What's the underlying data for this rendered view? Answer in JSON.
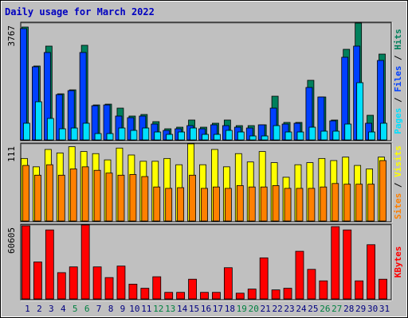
{
  "chart_data": [
    {
      "type": "bar",
      "title": "Daily usage for March 2022",
      "legend_separator": "/",
      "ylim": [
        0,
        3767
      ],
      "yticks": [
        3767
      ],
      "series": [
        {
          "name": "Pages",
          "color": "#00e0ff",
          "values": [
            538,
            1230,
            692,
            359,
            384,
            538,
            205,
            205,
            384,
            307,
            384,
            256,
            179,
            256,
            384,
            179,
            179,
            307,
            256,
            128,
            128,
            461,
            256,
            256,
            410,
            282,
            282,
            512,
            1845,
            256,
            538
          ]
        },
        {
          "name": "Files",
          "color": "#0040ff",
          "values": [
            3587,
            2357,
            2819,
            1461,
            1589,
            2819,
            1102,
            1127,
            769,
            717,
            769,
            512,
            307,
            359,
            461,
            359,
            487,
            461,
            410,
            384,
            487,
            1025,
            512,
            538,
            1691,
            1384,
            615,
            2665,
            3024,
            538,
            2562
          ]
        },
        {
          "name": "Hits",
          "color": "#00805c",
          "values": [
            3639,
            2383,
            3024,
            1486,
            1614,
            3050,
            1127,
            1153,
            1025,
            769,
            820,
            589,
            359,
            410,
            641,
            410,
            538,
            641,
            461,
            461,
            487,
            1409,
            564,
            564,
            1922,
            1384,
            641,
            2921,
            3767,
            794,
            2767
          ]
        }
      ]
    },
    {
      "type": "bar",
      "legend_separator": "/",
      "ylim": [
        0,
        111
      ],
      "yticks": [
        111
      ],
      "series": [
        {
          "name": "Sites",
          "color": "#ff8000",
          "values": [
            80,
            66,
            81,
            66,
            75,
            78,
            73,
            69,
            66,
            67,
            64,
            49,
            47,
            48,
            66,
            47,
            49,
            47,
            51,
            49,
            49,
            51,
            47,
            47,
            47,
            49,
            54,
            53,
            53,
            53,
            87
          ]
        },
        {
          "name": "Visits",
          "color": "#ffff00",
          "values": [
            90,
            78,
            103,
            98,
            107,
            100,
            97,
            88,
            105,
            95,
            86,
            86,
            90,
            81,
            111,
            81,
            103,
            78,
            97,
            85,
            100,
            84,
            63,
            81,
            84,
            90,
            87,
            92,
            80,
            75,
            92
          ]
        }
      ]
    },
    {
      "type": "bar",
      "ylim": [
        0,
        60605
      ],
      "yticks": [
        60605
      ],
      "categories": [
        "1",
        "2",
        "3",
        "4",
        "5",
        "6",
        "7",
        "8",
        "9",
        "10",
        "11",
        "12",
        "13",
        "14",
        "15",
        "16",
        "17",
        "18",
        "19",
        "20",
        "21",
        "22",
        "23",
        "24",
        "25",
        "26",
        "27",
        "28",
        "29",
        "30",
        "31"
      ],
      "category_colors": [
        "#000080",
        "#000080",
        "#000080",
        "#000080",
        "#008040",
        "#008040",
        "#000080",
        "#000080",
        "#000080",
        "#000080",
        "#000080",
        "#008040",
        "#008040",
        "#000080",
        "#000080",
        "#000080",
        "#000080",
        "#000080",
        "#008040",
        "#008040",
        "#000080",
        "#000080",
        "#000080",
        "#000080",
        "#000080",
        "#008040",
        "#008040",
        "#000080",
        "#000080",
        "#000080",
        "#000080"
      ],
      "series": [
        {
          "name": "KBytes",
          "color": "#ff0000",
          "values": [
            59932,
            30303,
            56565,
            21549,
            26262,
            60605,
            26262,
            17508,
            26936,
            12121,
            8754,
            18182,
            5387,
            5387,
            16162,
            5387,
            5387,
            25589,
            4714,
            8080,
            33670,
            7407,
            8754,
            39057,
            24242,
            14815,
            59259,
            56565,
            14815,
            44444,
            16162
          ]
        }
      ]
    }
  ]
}
